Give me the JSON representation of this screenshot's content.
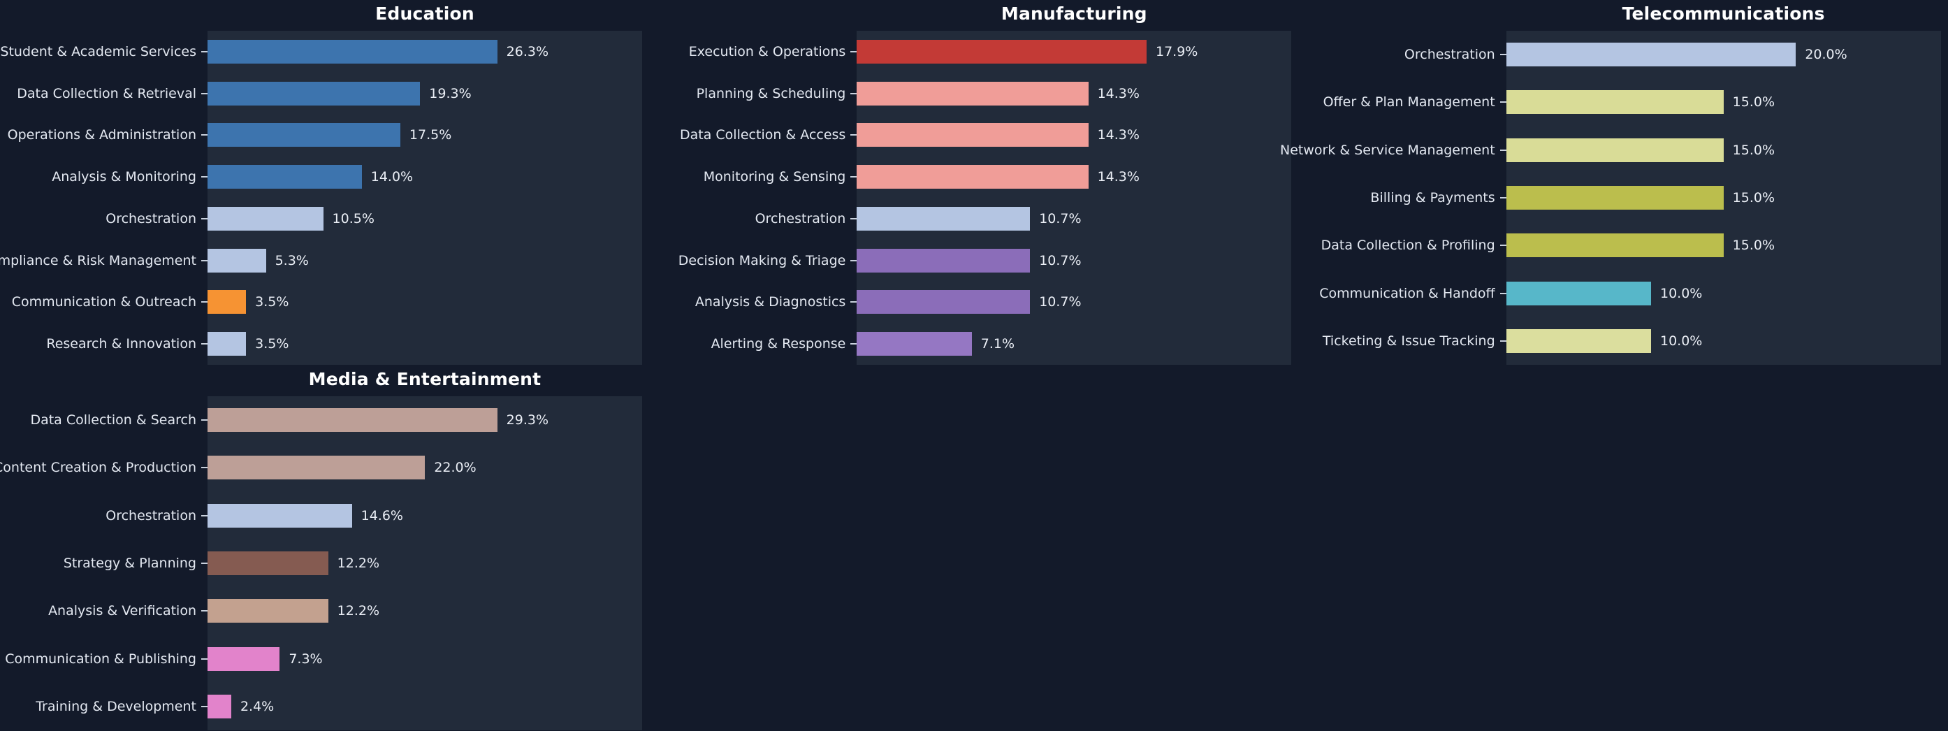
{
  "theme": {
    "page_bg": "#131a2a",
    "plot_bg": "#222b3a",
    "title_color": "#ffffff",
    "label_color": "#e3e8f1",
    "value_color": "#eaeef5",
    "tick_color": "#c9d1dd"
  },
  "chart_data": [
    {
      "type": "bar",
      "orientation": "horizontal",
      "title": "Education",
      "grid": false,
      "legend": null,
      "xlim": [
        0,
        39.45
      ],
      "categories": [
        "Student & Academic Services",
        "Data Collection & Retrieval",
        "Operations & Administration",
        "Analysis & Monitoring",
        "Orchestration",
        "Compliance & Risk Management",
        "Communication & Outreach",
        "Research & Innovation"
      ],
      "values": [
        26.3,
        19.3,
        17.5,
        14.0,
        10.5,
        5.3,
        3.5,
        3.5
      ],
      "value_labels": [
        "26.3%",
        "19.3%",
        "17.5%",
        "14.0%",
        "10.5%",
        "5.3%",
        "3.5%",
        "3.5%"
      ],
      "bar_colors": [
        "#3d74ae",
        "#3d74ae",
        "#3d74ae",
        "#3d74ae",
        "#b4c5e2",
        "#b4c5e2",
        "#f69333",
        "#b4c5e2"
      ]
    },
    {
      "type": "bar",
      "orientation": "horizontal",
      "title": "Manufacturing",
      "grid": false,
      "legend": null,
      "xlim": [
        0,
        26.85
      ],
      "categories": [
        "Execution & Operations",
        "Planning & Scheduling",
        "Data Collection & Access",
        "Monitoring & Sensing",
        "Orchestration",
        "Decision Making & Triage",
        "Analysis & Diagnostics",
        "Alerting & Response"
      ],
      "values": [
        17.9,
        14.3,
        14.3,
        14.3,
        10.7,
        10.7,
        10.7,
        7.1
      ],
      "value_labels": [
        "17.9%",
        "14.3%",
        "14.3%",
        "14.3%",
        "10.7%",
        "10.7%",
        "10.7%",
        "7.1%"
      ],
      "bar_colors": [
        "#c33a36",
        "#f09d98",
        "#f09d98",
        "#f09d98",
        "#b4c5e2",
        "#8b6db9",
        "#8b6db9",
        "#9577c3"
      ]
    },
    {
      "type": "bar",
      "orientation": "horizontal",
      "title": "Telecommunications",
      "grid": false,
      "legend": null,
      "xlim": [
        0,
        30.0
      ],
      "categories": [
        "Orchestration",
        "Offer & Plan Management",
        "Network & Service Management",
        "Billing & Payments",
        "Data Collection & Profiling",
        "Communication & Handoff",
        "Ticketing & Issue Tracking"
      ],
      "values": [
        20.0,
        15.0,
        15.0,
        15.0,
        15.0,
        10.0,
        10.0
      ],
      "value_labels": [
        "20.0%",
        "15.0%",
        "15.0%",
        "15.0%",
        "15.0%",
        "10.0%",
        "10.0%"
      ],
      "bar_colors": [
        "#b4c5e2",
        "#d9dc97",
        "#d9dc97",
        "#bbbe4d",
        "#bbbe4d",
        "#57b7c9",
        "#dbde9e"
      ]
    },
    {
      "type": "bar",
      "orientation": "horizontal",
      "title": "Media & Entertainment",
      "grid": false,
      "legend": null,
      "xlim": [
        0,
        43.95
      ],
      "categories": [
        "Data Collection & Search",
        "Content Creation & Production",
        "Orchestration",
        "Strategy & Planning",
        "Analysis & Verification",
        "Communication & Publishing",
        "Training & Development"
      ],
      "values": [
        29.3,
        22.0,
        14.6,
        12.2,
        12.2,
        7.3,
        2.4
      ],
      "value_labels": [
        "29.3%",
        "22.0%",
        "14.6%",
        "12.2%",
        "12.2%",
        "7.3%",
        "2.4%"
      ],
      "bar_colors": [
        "#bd9f97",
        "#bd9f97",
        "#b4c5e2",
        "#855b51",
        "#c3a18f",
        "#e283cb",
        "#e283cb"
      ]
    }
  ]
}
